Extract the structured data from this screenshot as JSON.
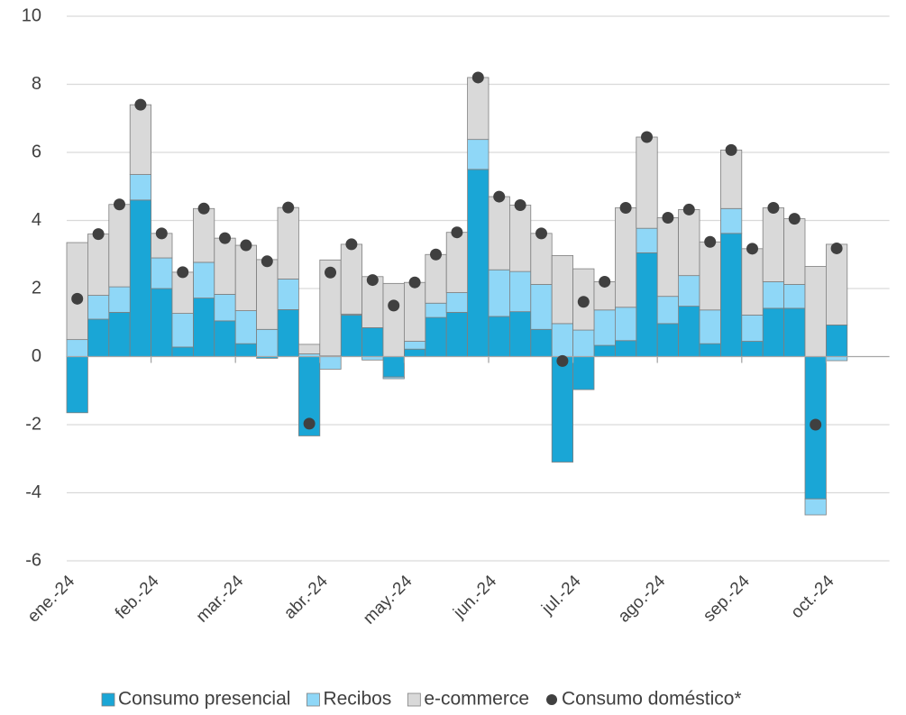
{
  "chart_data": {
    "type": "bar",
    "stacked": true,
    "grid": true,
    "legend": "bottom",
    "categories": [
      "ene.-24",
      null,
      null,
      null,
      "feb.-24",
      null,
      null,
      null,
      "mar.-24",
      null,
      null,
      null,
      "abr.-24",
      null,
      null,
      null,
      "may.-24",
      null,
      null,
      null,
      "jun.-24",
      null,
      null,
      null,
      "jul.-24",
      null,
      null,
      null,
      "ago.-24",
      null,
      null,
      null,
      "sep.-24",
      null,
      null,
      null,
      "oct.-24",
      null,
      null
    ],
    "ylim": [
      -6,
      10
    ],
    "yticks": [
      -6,
      -4,
      -2,
      0,
      2,
      4,
      6,
      8,
      10
    ],
    "series": [
      {
        "name": "Consumo presencial",
        "type": "bar",
        "color": "#1aa6d6",
        "values": [
          -1.65,
          1.1,
          1.3,
          4.6,
          2.0,
          0.28,
          1.72,
          1.05,
          0.38,
          -0.05,
          1.38,
          -2.33,
          0.02,
          1.22,
          0.85,
          -0.6,
          0.22,
          1.15,
          1.3,
          5.5,
          1.18,
          1.32,
          0.8,
          -3.1,
          -0.97,
          0.33,
          0.47,
          3.05,
          0.97,
          1.48,
          0.38,
          3.62,
          0.45,
          1.42,
          1.42,
          -4.18,
          0.93,
          null,
          null
        ]
      },
      {
        "name": "Recibos",
        "type": "bar",
        "color": "#8fd7f7",
        "values": [
          0.5,
          0.7,
          0.75,
          0.75,
          0.9,
          0.99,
          1.05,
          0.78,
          0.97,
          0.8,
          0.9,
          0.08,
          -0.37,
          0.03,
          -0.1,
          -0.05,
          0.23,
          0.42,
          0.58,
          0.88,
          1.37,
          1.18,
          1.32,
          0.97,
          0.78,
          1.04,
          0.98,
          0.72,
          0.8,
          0.9,
          0.99,
          0.73,
          0.77,
          0.78,
          0.7,
          -0.47,
          -0.12,
          null,
          null
        ]
      },
      {
        "name": "e-commerce",
        "type": "bar",
        "color": "#d9d9d9",
        "values": [
          2.85,
          1.8,
          2.42,
          2.05,
          0.72,
          1.21,
          1.58,
          1.65,
          1.92,
          2.05,
          2.1,
          0.28,
          2.82,
          2.05,
          1.5,
          2.15,
          1.73,
          1.43,
          1.77,
          1.82,
          2.15,
          1.95,
          1.5,
          2.0,
          1.8,
          0.83,
          2.92,
          2.68,
          2.31,
          1.94,
          2.0,
          1.72,
          1.95,
          2.17,
          1.93,
          2.65,
          2.37,
          null,
          null
        ]
      },
      {
        "name": "Consumo doméstico*",
        "type": "scatter",
        "color": "#404040",
        "values": [
          1.7,
          3.6,
          4.47,
          7.4,
          3.62,
          2.48,
          4.35,
          3.48,
          3.27,
          2.8,
          4.38,
          -1.97,
          2.47,
          3.3,
          2.25,
          1.5,
          2.18,
          3.0,
          3.65,
          8.2,
          4.7,
          4.45,
          3.62,
          -0.13,
          1.61,
          2.2,
          4.37,
          6.45,
          4.08,
          4.32,
          3.37,
          6.07,
          3.17,
          4.37,
          4.05,
          -2.0,
          3.18,
          null,
          null
        ]
      }
    ]
  }
}
